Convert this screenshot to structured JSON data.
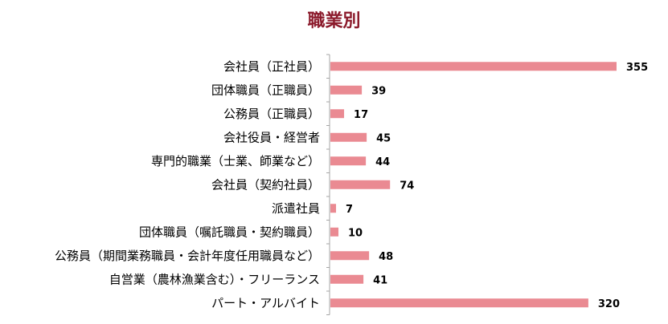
{
  "chart_data": {
    "type": "bar",
    "orientation": "horizontal",
    "title": "職業別",
    "categories": [
      "会社員（正社員）",
      "団体職員（正職員）",
      "公務員（正職員）",
      "会社役員・経営者",
      "専門的職業（士業、師業など）",
      "会社員（契約社員）",
      "派遣社員",
      "団体職員（嘱託職員・契約職員）",
      "公務員（期間業務職員・会計年度任用職員など）",
      "自営業（農林漁業含む）・フリーランス",
      "パート・アルバイト"
    ],
    "values": [
      355,
      39,
      17,
      45,
      44,
      74,
      7,
      10,
      48,
      41,
      320
    ],
    "xlim": [
      0,
      355
    ],
    "grid": false,
    "legend": "none",
    "bar_color": "#EA8A92",
    "axis_color": "#A6A6A6"
  }
}
